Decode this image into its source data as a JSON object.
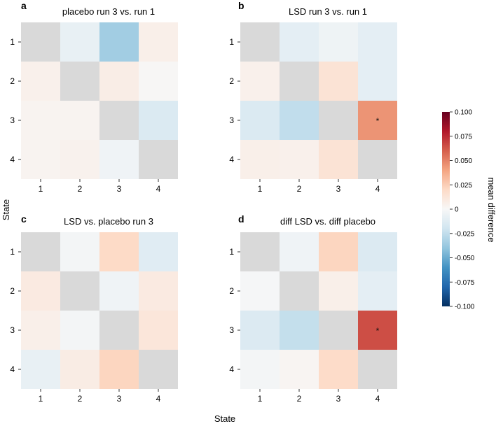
{
  "figure": {
    "shared_xlabel": "State",
    "shared_ylabel": "State",
    "colorbar": {
      "label": "mean difference",
      "vmin": -0.1,
      "vmax": 0.1,
      "ticks": [
        0.1,
        0.075,
        0.05,
        0.025,
        0,
        -0.025,
        -0.05,
        -0.075,
        -0.1
      ],
      "tick_labels": [
        "0.100",
        "0.075",
        "0.050",
        "0.025",
        "0",
        "-0.025",
        "-0.050",
        "-0.075",
        "-0.100"
      ],
      "colors": [
        "#053061",
        "#2166ac",
        "#4393c3",
        "#92c5de",
        "#d1e5f0",
        "#f7f7f7",
        "#fddbc7",
        "#f4a582",
        "#d6604d",
        "#b2182b",
        "#67001f"
      ]
    },
    "diagonal_color": "#d9d9d9"
  },
  "chart_data": [
    {
      "type": "heatmap",
      "panel": "a",
      "title": "placebo run 3 vs. run 1",
      "x_categories": [
        "1",
        "2",
        "3",
        "4"
      ],
      "y_categories": [
        "1",
        "2",
        "3",
        "4"
      ],
      "values": [
        [
          null,
          -0.008,
          -0.035,
          0.006
        ],
        [
          0.005,
          null,
          0.007,
          0.001
        ],
        [
          0.003,
          0.003,
          null,
          -0.015
        ],
        [
          0.003,
          0.004,
          -0.004,
          null
        ]
      ],
      "annotations": []
    },
    {
      "type": "heatmap",
      "panel": "b",
      "title": "LSD run 3 vs. run 1",
      "x_categories": [
        "1",
        "2",
        "3",
        "4"
      ],
      "y_categories": [
        "1",
        "2",
        "3",
        "4"
      ],
      "values": [
        [
          null,
          -0.01,
          -0.005,
          -0.01
        ],
        [
          0.005,
          null,
          0.014,
          -0.01
        ],
        [
          -0.015,
          -0.025,
          null,
          0.045
        ],
        [
          0.006,
          0.005,
          0.014,
          null
        ]
      ],
      "annotations": [
        {
          "row": 2,
          "col": 3,
          "text": "*"
        }
      ]
    },
    {
      "type": "heatmap",
      "panel": "c",
      "title": "LSD vs. placebo run 3",
      "x_categories": [
        "1",
        "2",
        "3",
        "4"
      ],
      "y_categories": [
        "1",
        "2",
        "3",
        "4"
      ],
      "values": [
        [
          null,
          -0.002,
          0.02,
          -0.012
        ],
        [
          0.009,
          null,
          -0.004,
          0.009
        ],
        [
          0.006,
          -0.002,
          null,
          0.012
        ],
        [
          -0.008,
          0.008,
          0.022,
          null
        ]
      ],
      "annotations": []
    },
    {
      "type": "heatmap",
      "panel": "d",
      "title": "diff LSD vs. diff placebo",
      "x_categories": [
        "1",
        "2",
        "3",
        "4"
      ],
      "y_categories": [
        "1",
        "2",
        "3",
        "4"
      ],
      "values": [
        [
          null,
          -0.004,
          0.022,
          -0.014
        ],
        [
          -0.001,
          null,
          0.006,
          -0.01
        ],
        [
          -0.014,
          -0.024,
          null,
          0.065
        ],
        [
          -0.002,
          0.002,
          0.019,
          null
        ]
      ],
      "annotations": [
        {
          "row": 2,
          "col": 3,
          "text": "*"
        }
      ]
    }
  ]
}
